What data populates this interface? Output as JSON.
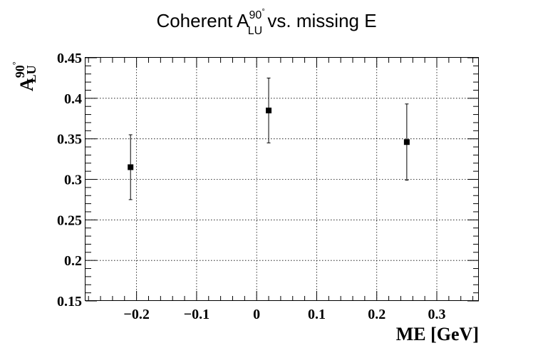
{
  "chart_data": {
    "type": "scatter",
    "title": {
      "prefix": "Coherent A",
      "superscript": "90",
      "degree": "°",
      "subscript": "LU",
      "suffix": " vs. missing E"
    },
    "xlabel": "ME [GeV]",
    "ylabel": {
      "main": "A",
      "superscript": "90",
      "degree": "°",
      "subscript": "LU"
    },
    "xlim": [
      -0.285,
      0.37
    ],
    "ylim": [
      0.15,
      0.45
    ],
    "x_ticks": [
      -0.2,
      -0.1,
      0,
      0.1,
      0.2,
      0.3
    ],
    "x_tick_labels": [
      "−0.2",
      "−0.1",
      "0",
      "0.1",
      "0.2",
      "0.3"
    ],
    "y_ticks": [
      0.15,
      0.2,
      0.25,
      0.3,
      0.35,
      0.4,
      0.45
    ],
    "y_tick_labels": [
      "0.15",
      "0.2",
      "0.25",
      "0.3",
      "0.35",
      "0.4",
      "0.45"
    ],
    "grid": true,
    "series": [
      {
        "x": [
          -0.21,
          0.02,
          0.25
        ],
        "y": [
          0.315,
          0.385,
          0.346
        ],
        "yerr": [
          0.04,
          0.04,
          0.047
        ]
      }
    ],
    "marker_color": "#000000"
  }
}
